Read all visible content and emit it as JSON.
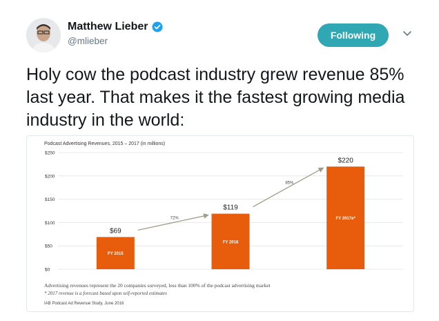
{
  "tweet": {
    "author_name": "Matthew Lieber",
    "handle": "@mlieber",
    "follow_label": "Following",
    "text": "Holy cow the podcast industry grew revenue 85% last year. That makes it the fastest growing media industry in the world:",
    "colors": {
      "follow_button": "#2fa8b3",
      "verified_badge": "#1da1f2",
      "text": "#14171a",
      "muted": "#657786"
    },
    "icons": [
      "avatar",
      "verified-badge-icon",
      "chevron-down-icon"
    ]
  },
  "chart_data": {
    "type": "bar",
    "title": "Podcast Advertising Revenues, 2015 – 2017 (in millions)",
    "categories": [
      "FY 2015",
      "FY 2016",
      "FY 2017e*"
    ],
    "values": [
      69,
      119,
      220
    ],
    "value_labels": [
      "$69",
      "$119",
      "$220"
    ],
    "growth_labels": [
      "72%",
      "85%"
    ],
    "ylim": [
      0,
      250
    ],
    "y_ticks": [
      0,
      50,
      100,
      150,
      200,
      250
    ],
    "y_tick_labels": [
      "$0",
      "$50",
      "$100",
      "$150",
      "$200",
      "$250"
    ],
    "bar_color": "#e85d0c",
    "arrow_color": "#a09b8a",
    "grid": true,
    "notes": [
      "Advertising revenues represent the 20 companies surveyed, less than 100% of the podcast advertising market",
      "* 2017 revenue is a forecast based upon self-reported estimates"
    ],
    "source": "IAB Podcast Ad Revenue Study, June 2016"
  }
}
